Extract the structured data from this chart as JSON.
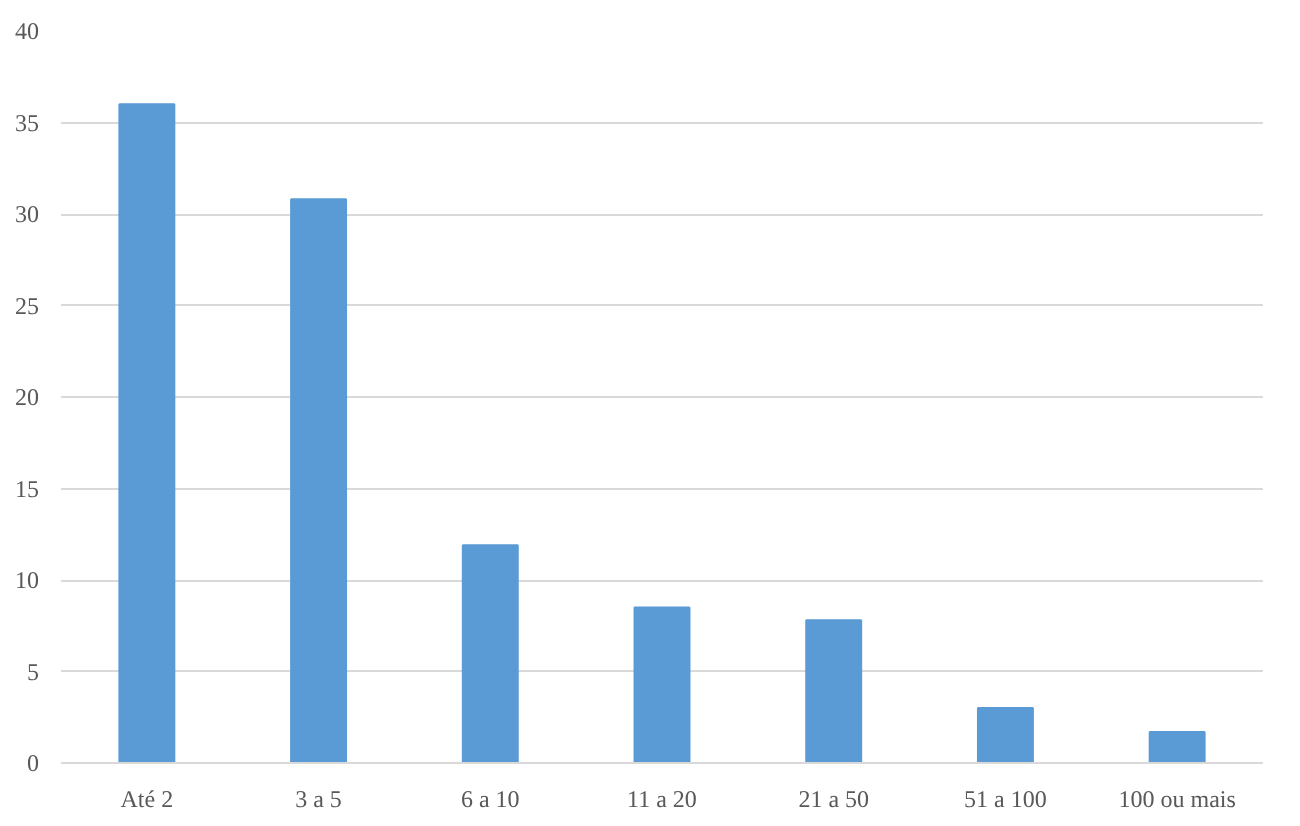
{
  "chart_data": {
    "type": "bar",
    "categories": [
      "Até 2",
      "3 a 5",
      "6 a 10",
      "11 a 20",
      "21 a 50",
      "51 a 100",
      "100 ou mais"
    ],
    "values": [
      36.0,
      30.8,
      11.9,
      8.5,
      7.8,
      3.0,
      1.7
    ],
    "color": "#5b9bd5",
    "ylim": [
      0,
      40
    ],
    "yticks": [
      0,
      5,
      10,
      15,
      20,
      25,
      30,
      35,
      40
    ],
    "grid": "y"
  }
}
